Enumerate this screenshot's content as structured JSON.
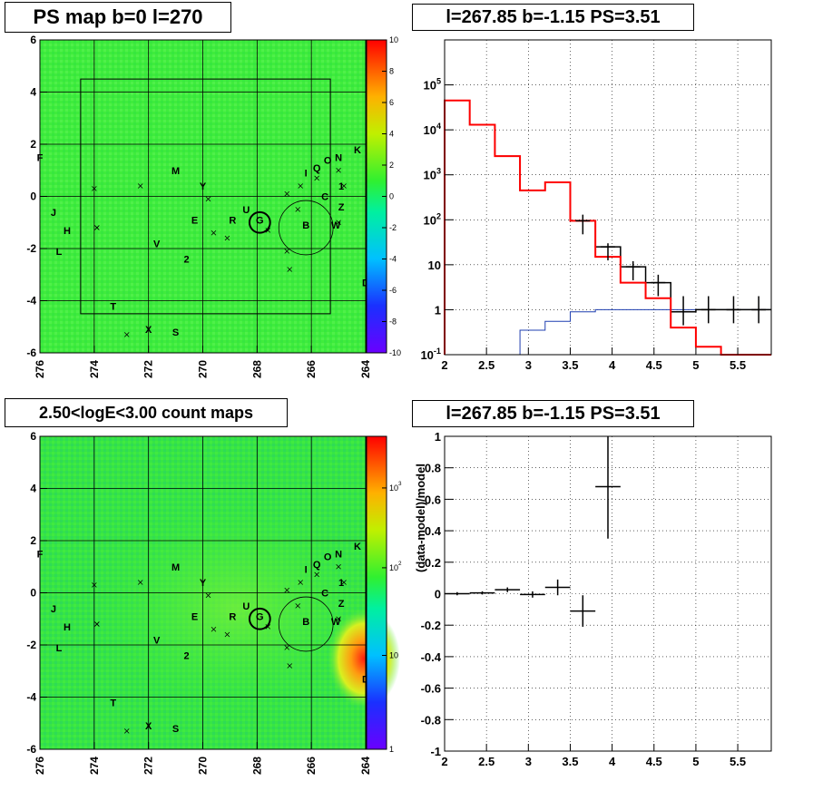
{
  "panels": {
    "top_left_title": "PS map b=0 l=270",
    "top_right_title": "l=267.85 b=-1.15 PS=3.51",
    "bottom_left_title": "2.50<logE<3.00 count maps",
    "bottom_right_title": "l=267.85 b=-1.15 PS=3.51"
  },
  "colors": {
    "map_green": "#3ded3a",
    "data": "#000000",
    "model": "#ff0000",
    "background": "#1f3fb0",
    "grid": "#000000"
  },
  "chart_data": [
    {
      "id": "ps_map",
      "type": "heatmap",
      "title": "PS map b=0 l=270",
      "xlim": [
        276,
        264
      ],
      "ylim": [
        -6,
        6
      ],
      "x_ticks": [
        "276",
        "274",
        "272",
        "270",
        "268",
        "266",
        "264"
      ],
      "y_ticks": [
        "6",
        "4",
        "2",
        "0",
        "-2",
        "-4",
        "-6"
      ],
      "z_range": [
        -10,
        10
      ],
      "colorbar_ticks": [
        "10",
        "8",
        "6",
        "4",
        "2",
        "0",
        "-2",
        "-4",
        "-6",
        "-8",
        "-10"
      ],
      "grid_l": [
        274,
        272,
        270,
        268,
        266
      ],
      "grid_b": [
        4,
        2,
        0,
        -2,
        -4
      ],
      "roi_box": {
        "l": [
          274.5,
          265.3
        ],
        "b": [
          -4.5,
          4.5
        ]
      },
      "circles": [
        {
          "l": 267.9,
          "b": -1.0,
          "r": 0.38
        },
        {
          "l": 266.2,
          "b": -1.2,
          "r": 1.0
        }
      ],
      "sources": [
        {
          "label": "M",
          "l": 271.0,
          "b": 1.0
        },
        {
          "label": "Y",
          "l": 270.0,
          "b": 0.4
        },
        {
          "label": "E",
          "l": 270.3,
          "b": -0.9
        },
        {
          "label": "R",
          "l": 268.9,
          "b": -0.9
        },
        {
          "label": "U",
          "l": 268.4,
          "b": -0.5
        },
        {
          "label": "G",
          "l": 267.9,
          "b": -0.9
        },
        {
          "label": "B",
          "l": 266.2,
          "b": -1.1
        },
        {
          "label": "W",
          "l": 265.1,
          "b": -1.1
        },
        {
          "label": "Z",
          "l": 264.9,
          "b": -0.4
        },
        {
          "label": "C",
          "l": 265.5,
          "b": 0.0
        },
        {
          "label": "1",
          "l": 264.9,
          "b": 0.4
        },
        {
          "label": "Q",
          "l": 265.8,
          "b": 1.1
        },
        {
          "label": "O",
          "l": 265.4,
          "b": 1.4
        },
        {
          "label": "N",
          "l": 265.0,
          "b": 1.5
        },
        {
          "label": "K",
          "l": 264.3,
          "b": 1.8
        },
        {
          "label": "I",
          "l": 266.2,
          "b": 0.9
        },
        {
          "label": "V",
          "l": 271.7,
          "b": -1.8
        },
        {
          "label": "2",
          "l": 270.6,
          "b": -2.4
        },
        {
          "label": "J",
          "l": 275.5,
          "b": -0.6
        },
        {
          "label": "H",
          "l": 275.0,
          "b": -1.3
        },
        {
          "label": "L",
          "l": 275.3,
          "b": -2.1
        },
        {
          "label": "T",
          "l": 273.3,
          "b": -4.2
        },
        {
          "label": "X",
          "l": 272.0,
          "b": -5.1
        },
        {
          "label": "S",
          "l": 271.0,
          "b": -5.2
        },
        {
          "label": "F",
          "l": 276.0,
          "b": 1.5
        },
        {
          "label": "D",
          "l": 264.0,
          "b": -3.3
        }
      ],
      "crosses": [
        {
          "l": 274.0,
          "b": 0.3
        },
        {
          "l": 273.9,
          "b": -1.2
        },
        {
          "l": 272.3,
          "b": 0.4
        },
        {
          "l": 269.8,
          "b": -0.1
        },
        {
          "l": 269.6,
          "b": -1.4
        },
        {
          "l": 269.1,
          "b": -1.6
        },
        {
          "l": 267.6,
          "b": -1.3
        },
        {
          "l": 266.9,
          "b": 0.1
        },
        {
          "l": 266.5,
          "b": -0.5
        },
        {
          "l": 266.4,
          "b": 0.4
        },
        {
          "l": 265.8,
          "b": 0.7
        },
        {
          "l": 265.0,
          "b": 1.0
        },
        {
          "l": 264.8,
          "b": 0.4
        },
        {
          "l": 265.0,
          "b": -1.0
        },
        {
          "l": 266.8,
          "b": -2.8
        },
        {
          "l": 266.9,
          "b": -2.1
        },
        {
          "l": 272.8,
          "b": -5.3
        },
        {
          "l": 273.9,
          "b": -1.2
        }
      ]
    },
    {
      "id": "spectrum",
      "type": "line",
      "title": "l=267.85 b=-1.15 PS=3.51",
      "xlim": [
        2,
        5.9
      ],
      "ylim": [
        0.1,
        1000000
      ],
      "log_y": true,
      "grid": true,
      "x_ticks": [
        "2",
        "2.5",
        "3",
        "3.5",
        "4",
        "4.5",
        "5",
        "5.5"
      ],
      "y_ticks": [
        "10^5",
        "10^4",
        "10^3",
        "10^2",
        "10",
        "1",
        "10^-1"
      ],
      "bin_edges": [
        2.0,
        2.3,
        2.6,
        2.9,
        3.2,
        3.5,
        3.8,
        4.1,
        4.4,
        4.7,
        5.0,
        5.3,
        5.6,
        5.9
      ],
      "series": [
        {
          "role": "data",
          "color": "#000000",
          "values": [
            45000,
            13000,
            2600,
            450,
            680,
            95,
            25,
            9,
            4,
            0.9,
            1,
            1,
            1
          ],
          "yerr_hi": [
            null,
            null,
            null,
            null,
            null,
            130,
            30,
            12,
            6,
            2,
            2,
            2,
            2
          ]
        },
        {
          "role": "model",
          "color": "#ff0000",
          "values": [
            45000,
            13000,
            2600,
            450,
            680,
            95,
            15,
            4,
            1.8,
            0.4,
            0.15,
            0.1,
            0.1
          ]
        },
        {
          "role": "background",
          "color": "#1f3fb0",
          "values": [
            null,
            null,
            0.1,
            0.35,
            0.55,
            0.9,
            1.0,
            1.0,
            1.0,
            1.0,
            1.0,
            1.0,
            1.0
          ]
        }
      ]
    },
    {
      "id": "count_map",
      "type": "heatmap",
      "title": "2.50<logE<3.00 count maps",
      "xlim": [
        276,
        264
      ],
      "ylim": [
        -6,
        6
      ],
      "x_ticks": [
        "276",
        "274",
        "272",
        "270",
        "268",
        "266",
        "264"
      ],
      "y_ticks": [
        "6",
        "4",
        "2",
        "0",
        "-2",
        "-4",
        "-6"
      ],
      "log_z": true,
      "colorbar_ticks": [
        "10^3",
        "10^2",
        "10",
        "1"
      ]
    },
    {
      "id": "residuals",
      "type": "scatter",
      "title": "l=267.85 b=-1.15 PS=3.51",
      "ylabel": "(data-model)/model",
      "xlim": [
        2,
        5.9
      ],
      "ylim": [
        -1,
        1
      ],
      "grid": true,
      "x_ticks": [
        "2",
        "2.5",
        "3",
        "3.5",
        "4",
        "4.5",
        "5",
        "5.5"
      ],
      "y_ticks": [
        "1",
        "0.8",
        "0.6",
        "0.4",
        "0.2",
        "0",
        "-0.2",
        "-0.4",
        "-0.6",
        "-0.8",
        "-1"
      ],
      "points": [
        {
          "x": 2.15,
          "y": 0.0,
          "xerr": 0.15,
          "yerr": 0.01
        },
        {
          "x": 2.45,
          "y": 0.005,
          "xerr": 0.15,
          "yerr": 0.01
        },
        {
          "x": 2.75,
          "y": 0.025,
          "xerr": 0.15,
          "yerr": 0.015
        },
        {
          "x": 3.05,
          "y": -0.005,
          "xerr": 0.15,
          "yerr": 0.02
        },
        {
          "x": 3.35,
          "y": 0.04,
          "xerr": 0.15,
          "yerr": 0.05
        },
        {
          "x": 3.65,
          "y": -0.11,
          "xerr": 0.15,
          "yerr": 0.1
        },
        {
          "x": 3.95,
          "y": 0.68,
          "xerr": 0.15,
          "yerr": 0.33
        }
      ]
    }
  ]
}
